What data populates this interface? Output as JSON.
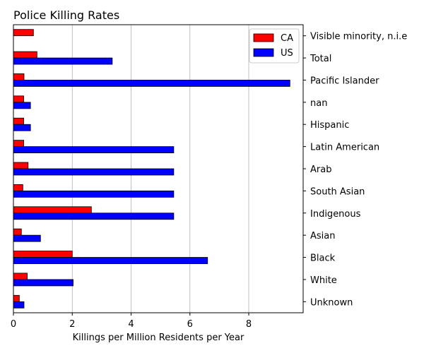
{
  "chart_data": {
    "type": "bar",
    "orientation": "horizontal",
    "title": "Police Killing Rates",
    "xlabel": "Killings per Million Residents per Year",
    "ylabel": "",
    "xlim": [
      0,
      9.85
    ],
    "xticks": [
      0,
      2,
      4,
      6,
      8
    ],
    "grid": "vertical",
    "y_axis_side": "right",
    "legend_position": "upper right",
    "categories": [
      "Unknown",
      "White",
      "Black",
      "Asian",
      "Indigenous",
      "South Asian",
      "Arab",
      "Latin American",
      "Hispanic",
      "nan",
      "Pacific Islander",
      "Total",
      "Visible minority, n.i.e"
    ],
    "series": [
      {
        "name": "CA",
        "color": "#ff0000",
        "values": [
          0.2,
          0.47,
          2.0,
          0.27,
          2.65,
          0.32,
          0.5,
          0.35,
          0.35,
          0.35,
          0.36,
          0.8,
          0.68
        ]
      },
      {
        "name": "US",
        "color": "#0000ff",
        "values": [
          0.36,
          2.03,
          6.6,
          0.92,
          5.45,
          5.45,
          5.45,
          5.45,
          0.58,
          0.58,
          9.4,
          3.36,
          0
        ]
      }
    ]
  }
}
